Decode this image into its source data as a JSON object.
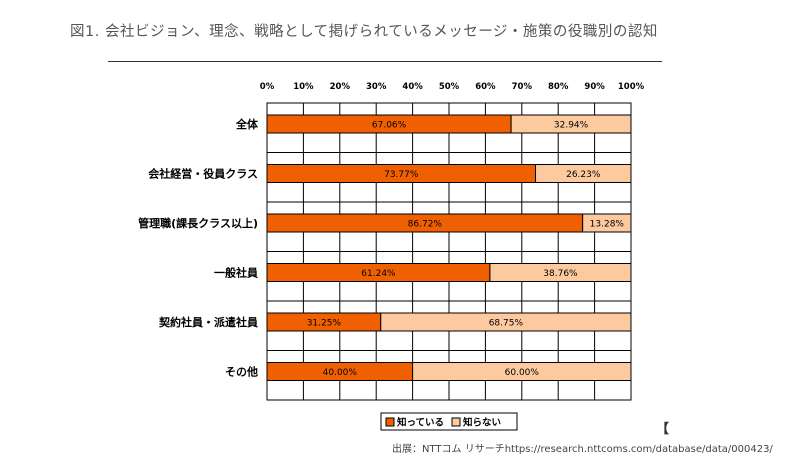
{
  "page": {
    "title": "図1. 会社ビジョン、理念、戦略として掲げられているメッセージ・施策の役職別の認知",
    "source": "出展：NTTコム リサーチhttps://research.nttcoms.com/database/data/000423/",
    "bracket_mark": "【"
  },
  "chart_data": {
    "type": "bar",
    "orientation": "horizontal",
    "stacked": true,
    "categories": [
      "全体",
      "会社経営・役員クラス",
      "管理職(課長クラス以上)",
      "一般社員",
      "契約社員・派遣社員",
      "その他"
    ],
    "series": [
      {
        "name": "知っている",
        "values": [
          67.06,
          73.77,
          86.72,
          61.24,
          31.25,
          40.0
        ],
        "labels": [
          "67.06%",
          "73.77%",
          "86.72%",
          "61.24%",
          "31.25%",
          "40.00%"
        ],
        "color": "#f06000"
      },
      {
        "name": "知らない",
        "values": [
          32.94,
          26.23,
          13.28,
          38.76,
          68.75,
          60.0
        ],
        "labels": [
          "32.94%",
          "26.23%",
          "13.28%",
          "38.76%",
          "68.75%",
          "60.00%"
        ],
        "color": "#fdc99e"
      }
    ],
    "xlim": [
      0,
      100
    ],
    "x_ticks": [
      0,
      10,
      20,
      30,
      40,
      50,
      60,
      70,
      80,
      90,
      100
    ],
    "x_tick_labels": [
      "0%",
      "10%",
      "20%",
      "30%",
      "40%",
      "50%",
      "60%",
      "70%",
      "80%",
      "90%",
      "100%"
    ],
    "grid": true,
    "legend_position": "bottom",
    "title": "",
    "xlabel": "",
    "ylabel": ""
  }
}
